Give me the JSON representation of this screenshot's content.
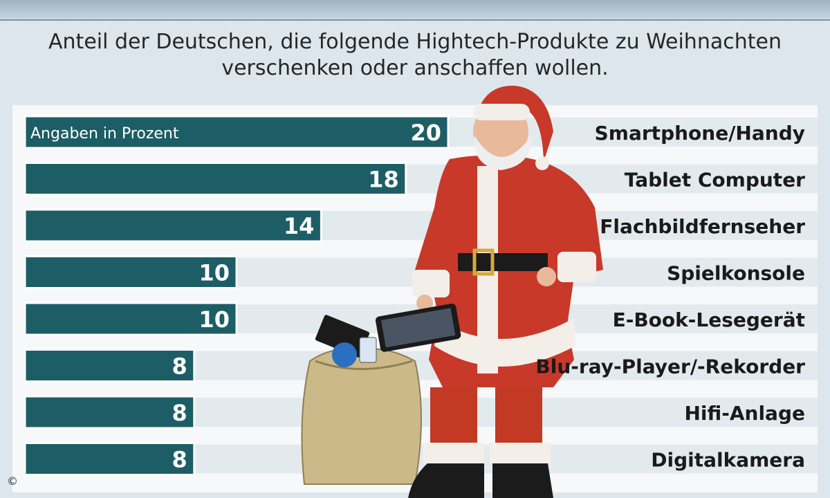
{
  "subtitle_line1": "Anteil der Deutschen, die folgende Hightech-Produkte zu Weihnachten",
  "subtitle_line2": "verschenken oder anschaffen wollen.",
  "copyright": "©",
  "colors": {
    "bar": "#1d5e66",
    "bar_border": "#ffffff",
    "row_shade": "#d4dee5",
    "label": "#1a1a1a",
    "value": "#ffffff"
  },
  "chart_data": {
    "type": "bar",
    "orientation": "horizontal",
    "unit_note": "Angaben in Prozent",
    "categories": [
      "Smartphone/Handy",
      "Tablet Computer",
      "Flachbildfernseher",
      "Spielkonsole",
      "E-Book-Lesegerät",
      "Blu-ray-Player/-Rekorder",
      "Hifi-Anlage",
      "Digitalkamera"
    ],
    "values": [
      20,
      18,
      14,
      10,
      10,
      8,
      8,
      8
    ],
    "xlim": [
      0,
      20
    ]
  }
}
